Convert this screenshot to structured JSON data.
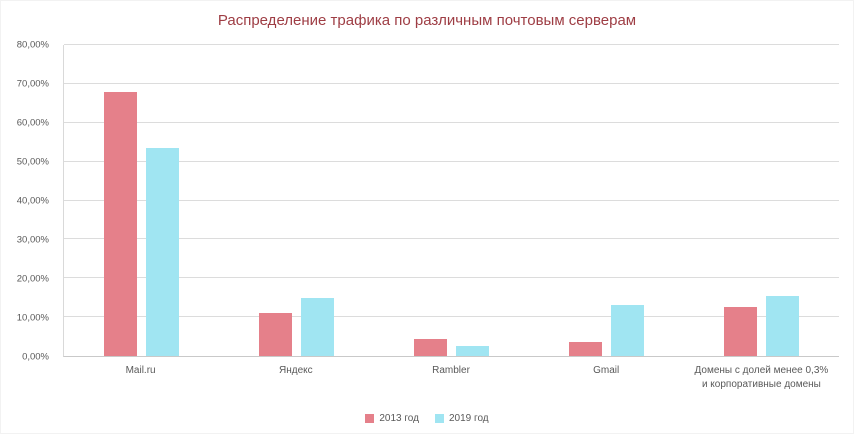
{
  "chart_data": {
    "type": "bar",
    "title": "Распределение трафика по различным почтовым серверам",
    "title_color": "#9e3d44",
    "categories": [
      "Mail.ru",
      "Яндекс",
      "Rambler",
      "Gmail",
      "Домены с долей менее  0,3% и корпоративные домены"
    ],
    "series": [
      {
        "name": "2013 год",
        "color": "#e5808a",
        "values": [
          68,
          11,
          4.3,
          3.5,
          12.5
        ]
      },
      {
        "name": "2019 год",
        "color": "#a0e5f2",
        "values": [
          53.5,
          15,
          2.5,
          13,
          15.5
        ]
      }
    ],
    "y_ticks": [
      {
        "label": "0,00%",
        "value": 0
      },
      {
        "label": "10,00%",
        "value": 10
      },
      {
        "label": "20,00%",
        "value": 20
      },
      {
        "label": "30,00%",
        "value": 30
      },
      {
        "label": "40,00%",
        "value": 40
      },
      {
        "label": "50,00%",
        "value": 50
      },
      {
        "label": "60,00%",
        "value": 60
      },
      {
        "label": "70,00%",
        "value": 70
      },
      {
        "label": "80,00%",
        "value": 80
      }
    ],
    "ylim": [
      0,
      80
    ],
    "grid": true,
    "legend_position": "bottom"
  }
}
